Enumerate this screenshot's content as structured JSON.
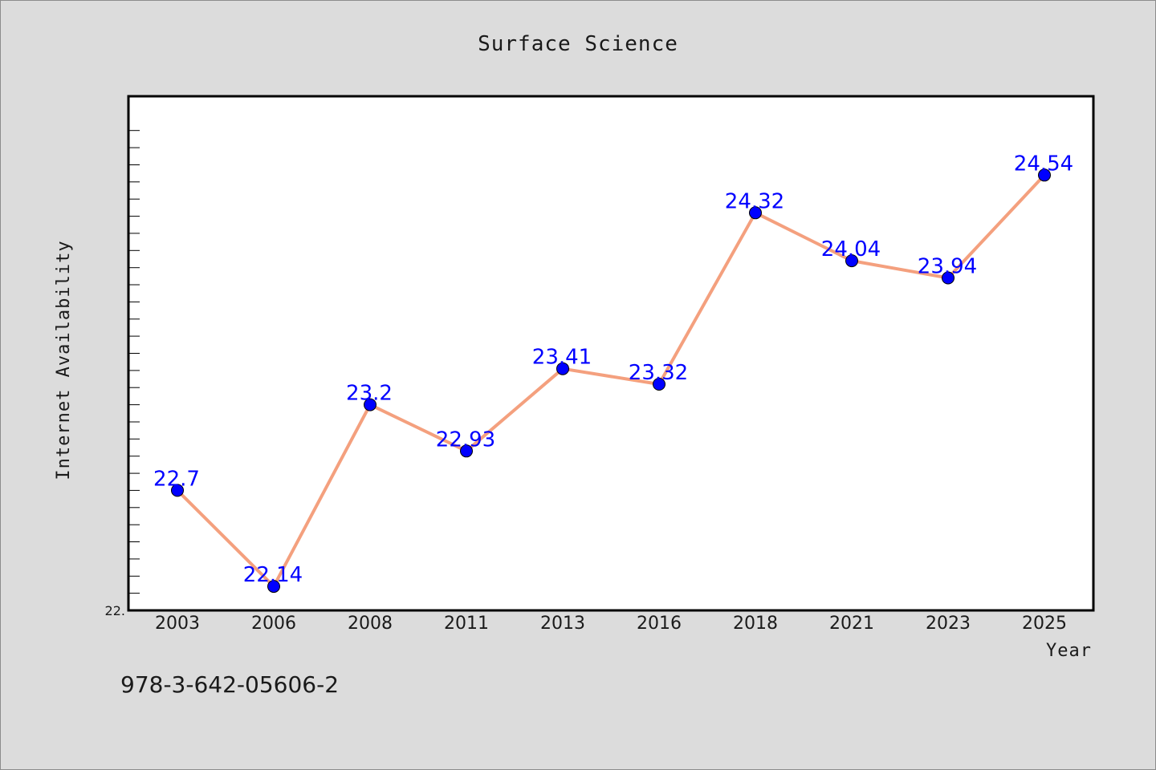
{
  "chart_data": {
    "type": "line",
    "title": "Surface Science",
    "xlabel": "Year",
    "ylabel": "Internet Availability",
    "categories": [
      "2003",
      "2006",
      "2008",
      "2011",
      "2013",
      "2016",
      "2018",
      "2021",
      "2023",
      "2025"
    ],
    "series": [
      {
        "values": [
          22.7,
          22.14,
          23.2,
          22.93,
          23.41,
          23.32,
          24.32,
          24.04,
          23.94,
          24.54
        ],
        "labels": [
          "22.7",
          "22.14",
          "23.2",
          "22.93",
          "23.41",
          "23.32",
          "24.32",
          "24.04",
          "23.94",
          "24.54"
        ]
      }
    ],
    "ylim": [
      22.0,
      25.0
    ],
    "ytick_labels": [
      "22."
    ],
    "grid": false,
    "colors": {
      "line": "#f4a07e",
      "marker": "#0000ff",
      "data_label": "#0000ff",
      "plot_background": "#ffffff",
      "page_background": "#dcdcdc"
    }
  },
  "footer": {
    "isbn": "978-3-642-05606-2"
  }
}
